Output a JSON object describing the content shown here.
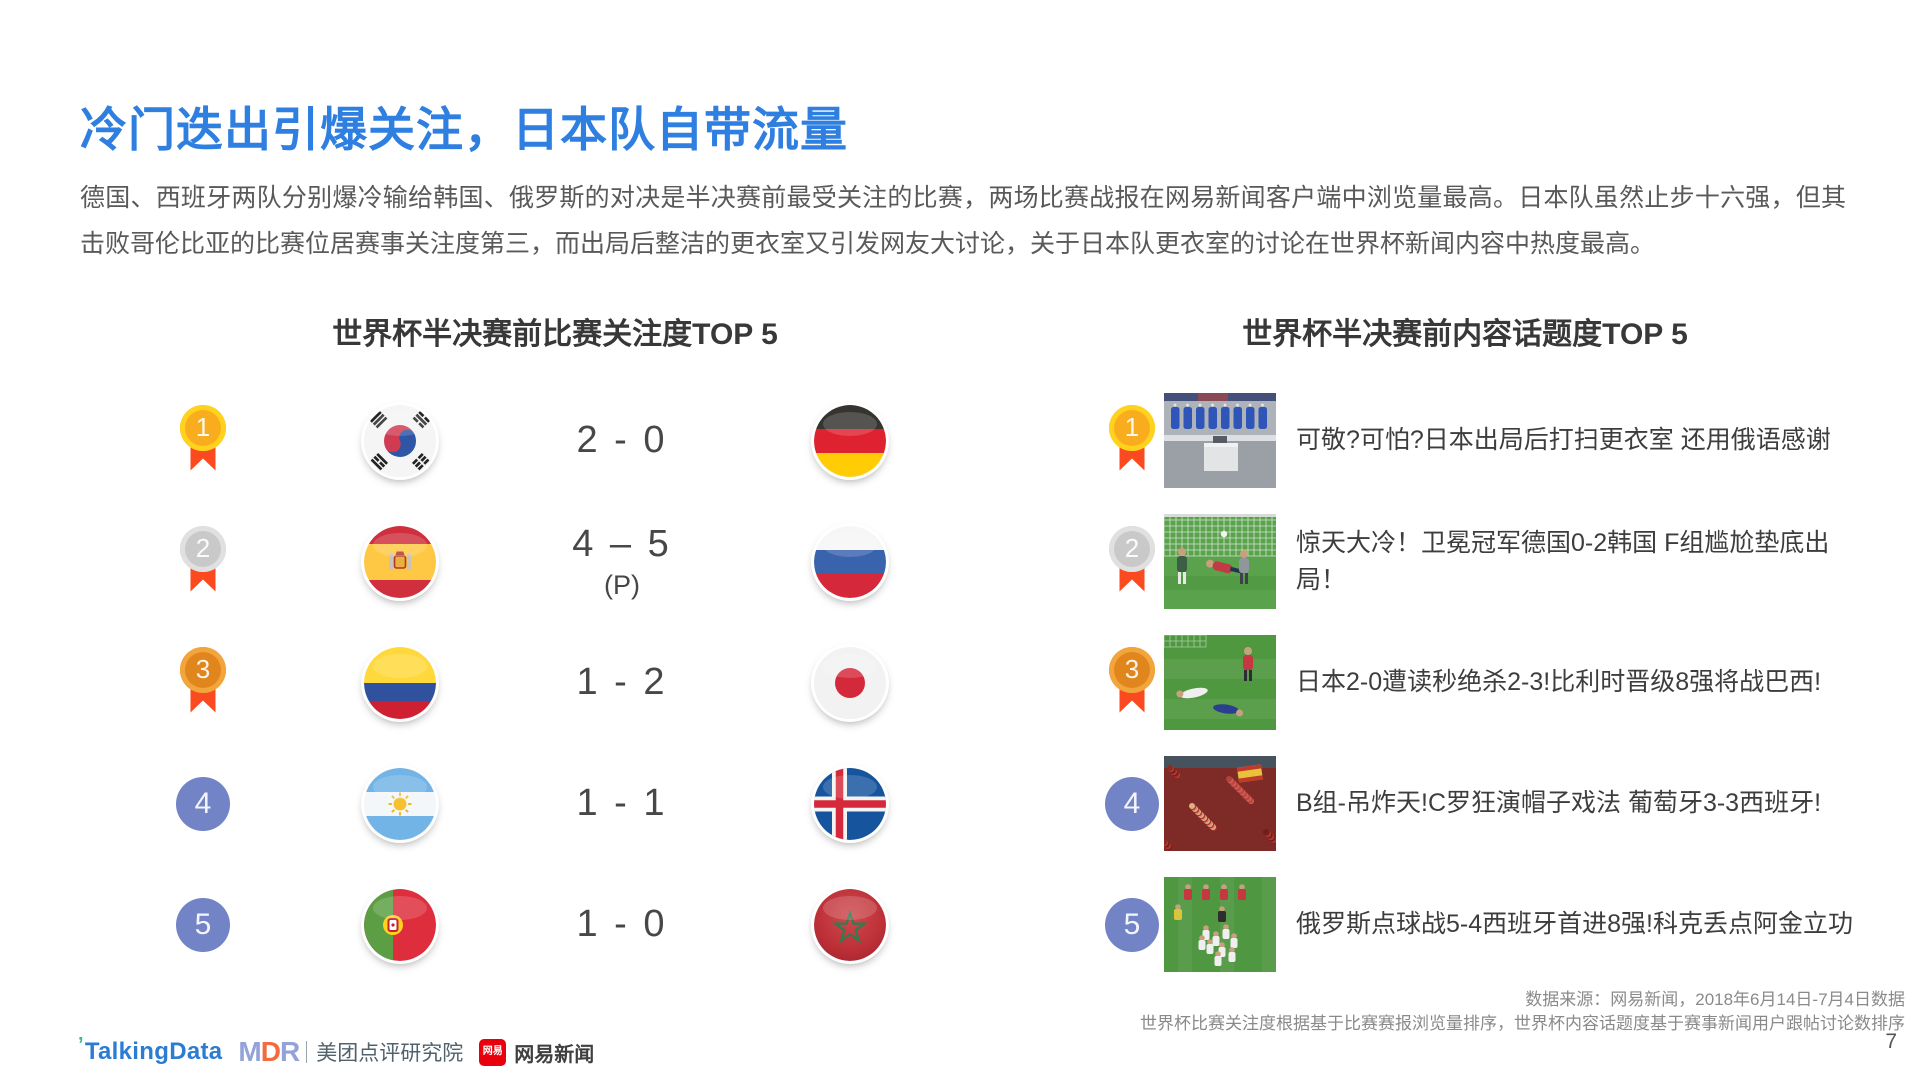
{
  "slide": {
    "title": "冷门迭出引爆关注，日本队自带流量",
    "intro": "德国、西班牙两队分别爆冷输给韩国、俄罗斯的对决是半决赛前最受关注的比赛，两场比赛战报在网易新闻客户端中浏览量最高。日本队虽然止步十六强，但其击败哥伦比亚的比赛位居赛事关注度第三，而出局后整洁的更衣室又引发网友大讨论，关于日本队更衣室的讨论在世界杯新闻内容中热度最高。",
    "page_number": "7"
  },
  "match_ranking": {
    "title": "世界杯半决赛前比赛关注度TOP 5",
    "rows": [
      {
        "rank": "1",
        "medal": "gold",
        "home_team_icon": "south-korea-flag",
        "score": "2 - 0",
        "score_note": "",
        "away_team_icon": "germany-flag"
      },
      {
        "rank": "2",
        "medal": "silver",
        "home_team_icon": "spain-flag",
        "score": "4 – 5",
        "score_note": "(P)",
        "away_team_icon": "russia-flag"
      },
      {
        "rank": "3",
        "medal": "bronze",
        "home_team_icon": "colombia-flag",
        "score": "1 - 2",
        "score_note": "",
        "away_team_icon": "japan-flag"
      },
      {
        "rank": "4",
        "medal": "plain",
        "home_team_icon": "argentina-flag",
        "score": "1 - 1",
        "score_note": "",
        "away_team_icon": "iceland-flag"
      },
      {
        "rank": "5",
        "medal": "plain",
        "home_team_icon": "portugal-flag",
        "score": "1 - 0",
        "score_note": "",
        "away_team_icon": "morocco-flag"
      }
    ]
  },
  "topic_ranking": {
    "title": "世界杯半决赛前内容话题度TOP 5",
    "rows": [
      {
        "rank": "1",
        "medal": "gold",
        "thumbnail_icon": "locker-room-photo",
        "headline": "可敬?可怕?日本出局后打扫更衣室 还用俄语感谢"
      },
      {
        "rank": "2",
        "medal": "silver",
        "thumbnail_icon": "goal-net-photo",
        "headline": "惊天大冷！卫冕冠军德国0-2韩国 F组尴尬垫底出局！"
      },
      {
        "rank": "3",
        "medal": "bronze",
        "thumbnail_icon": "fallen-players-photo",
        "headline": "日本2-0遭读秒绝杀2-3!比利时晋级8强将战巴西!"
      },
      {
        "rank": "4",
        "medal": "plain",
        "thumbnail_icon": "red-crowd-photo",
        "headline": "B组-吊炸天!C罗狂演帽子戏法 葡萄牙3-3西班牙!"
      },
      {
        "rank": "5",
        "medal": "plain",
        "thumbnail_icon": "celebration-photo",
        "headline": "俄罗斯点球战5-4西班牙首进8强!科克丢点阿金立功"
      }
    ]
  },
  "footer": {
    "source_line1": "数据来源：网易新闻，2018年6月14日-7月4日数据",
    "source_line2": "世界杯比赛关注度根据基于比赛赛报浏览量排序，世界杯内容话题度基于赛事新闻用户跟帖讨论数排序",
    "logos": {
      "talkingdata": "TalkingData",
      "mdr_letters": [
        "M",
        "D",
        "R"
      ],
      "mdr_text": "美团点评研究院",
      "netease_badge": "网易",
      "netease_text": "网易新闻"
    }
  },
  "colors": {
    "accent_blue": "#2E7FE0",
    "medal_gold": "#FFD21D",
    "medal_silver": "#E0E0E0",
    "medal_bronze": "#F2A53C",
    "ribbon_red": "#FB4A1F",
    "rank_circle_blue": "#7384C6",
    "body_text": "#595959"
  }
}
